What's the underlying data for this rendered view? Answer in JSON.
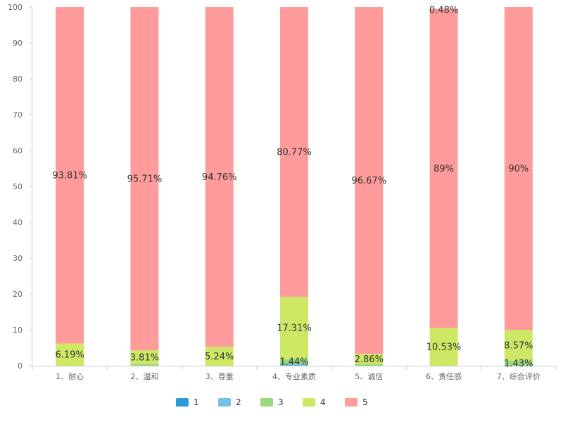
{
  "chart_data": {
    "type": "bar",
    "stacked": true,
    "categories": [
      "1、耐心",
      "2、温和",
      "3、尊重",
      "4、专业素质",
      "5、诚信",
      "6、责任感",
      "7、综合评价"
    ],
    "series": [
      {
        "name": "1",
        "color": "#2a9bd6",
        "values": [
          0,
          0,
          0,
          0,
          0,
          0,
          0
        ],
        "labels": [
          "",
          "",
          "",
          "",
          "",
          "",
          ""
        ]
      },
      {
        "name": "2",
        "color": "#74c1e8",
        "values": [
          0,
          0,
          0,
          0.48,
          0,
          0,
          0
        ],
        "labels": [
          "",
          "",
          "",
          "",
          "",
          "",
          ""
        ]
      },
      {
        "name": "3",
        "color": "#99d97e",
        "values": [
          0,
          0.48,
          0,
          1.44,
          0.47,
          0,
          1.43
        ],
        "labels": [
          "",
          "",
          "",
          "1.44%",
          "",
          "",
          "1.43%"
        ]
      },
      {
        "name": "4",
        "color": "#cde865",
        "values": [
          6.19,
          3.81,
          5.24,
          17.31,
          2.86,
          10.53,
          8.57
        ],
        "labels": [
          "6.19%",
          "3.81%",
          "5.24%",
          "17.31%",
          "2.86%",
          "10.53%",
          "8.57%"
        ]
      },
      {
        "name": "5",
        "color": "#ff9b9b",
        "values": [
          93.81,
          95.71,
          94.76,
          80.77,
          96.67,
          89,
          90
        ],
        "labels": [
          "93.81%",
          "95.71%",
          "94.76%",
          "80.77%",
          "96.67%",
          "89%",
          "90%"
        ]
      }
    ],
    "extra_labels": [
      {
        "category": "6、责任感",
        "text": "0.48%"
      }
    ],
    "ylim": [
      0,
      100
    ],
    "yticks": [
      0,
      10,
      20,
      30,
      40,
      50,
      60,
      70,
      80,
      90,
      100
    ],
    "legend_position": "bottom-center",
    "grid": false
  }
}
